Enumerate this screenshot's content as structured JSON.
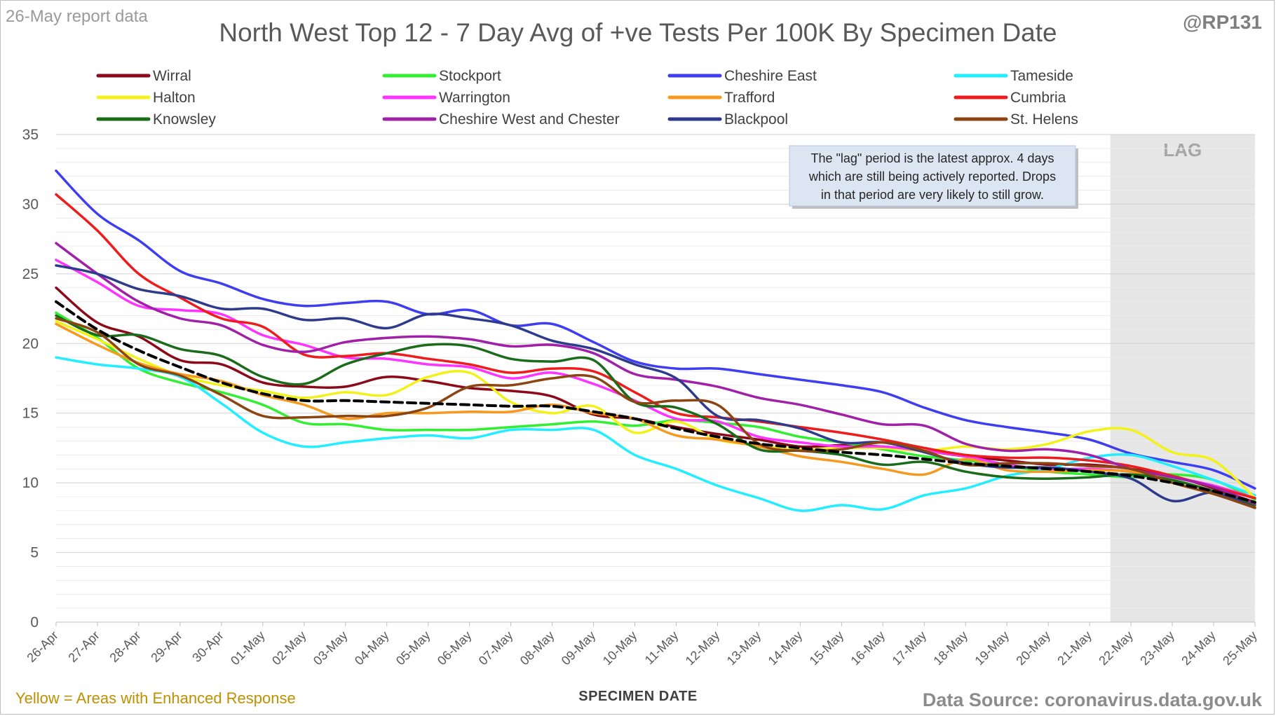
{
  "header": {
    "report_label": "26-May report data",
    "handle": "@RP131"
  },
  "footer": {
    "enhanced_note": "Yellow = Areas with Enhanced Response",
    "source": "Data Source: coronavirus.data.gov.uk"
  },
  "chart_data": {
    "type": "line",
    "title": "North West Top 12 - 7 Day Avg of +ve Tests Per 100K By Specimen Date",
    "xlabel": "SPECIMEN DATE",
    "ylabel": "",
    "ylim": [
      0,
      35
    ],
    "yticks": [
      0,
      5,
      10,
      15,
      20,
      25,
      30,
      35
    ],
    "grid": true,
    "legend_position": "top",
    "categories": [
      "26-Apr",
      "27-Apr",
      "28-Apr",
      "29-Apr",
      "30-Apr",
      "01-May",
      "02-May",
      "03-May",
      "04-May",
      "05-May",
      "06-May",
      "07-May",
      "08-May",
      "09-May",
      "10-May",
      "11-May",
      "12-May",
      "13-May",
      "14-May",
      "15-May",
      "16-May",
      "17-May",
      "18-May",
      "19-May",
      "20-May",
      "21-May",
      "22-May",
      "23-May",
      "24-May",
      "25-May"
    ],
    "lag": {
      "label": "LAG",
      "start_category": "22-May",
      "end_category": "25-May",
      "note": "The \"lag\" period is the latest approx. 4 days which are still being actively reported. Drops in that period are very likely to still grow."
    },
    "series": [
      {
        "name": "Wirral",
        "color": "#8b0a1a",
        "values": [
          24.0,
          21.5,
          20.5,
          18.8,
          18.5,
          17.2,
          16.9,
          16.9,
          17.6,
          17.3,
          16.8,
          16.6,
          16.2,
          14.9,
          14.6,
          14.0,
          13.5,
          13.1,
          12.6,
          12.7,
          12.6,
          12.3,
          11.9,
          11.6,
          11.3,
          11.3,
          11.0,
          10.5,
          9.6,
          8.6
        ]
      },
      {
        "name": "Stockport",
        "color": "#33ee33",
        "values": [
          22.2,
          20.4,
          18.2,
          17.2,
          16.5,
          15.6,
          14.3,
          14.2,
          13.8,
          13.8,
          13.8,
          14.0,
          14.2,
          14.4,
          14.1,
          14.5,
          14.3,
          14.0,
          13.3,
          12.9,
          12.4,
          11.9,
          11.6,
          11.2,
          10.8,
          10.6,
          10.4,
          10.6,
          10.2,
          8.8
        ]
      },
      {
        "name": "Cheshire East",
        "color": "#3e3ef0",
        "values": [
          32.4,
          29.3,
          27.4,
          25.2,
          24.3,
          23.2,
          22.7,
          22.9,
          23.0,
          22.1,
          22.4,
          21.3,
          21.4,
          20.1,
          18.7,
          18.2,
          18.2,
          17.8,
          17.4,
          17.0,
          16.5,
          15.4,
          14.5,
          14.0,
          13.6,
          13.1,
          12.1,
          11.5,
          10.9,
          9.6
        ]
      },
      {
        "name": "Tameside",
        "color": "#22eeff",
        "values": [
          19.0,
          18.5,
          18.2,
          17.6,
          15.7,
          13.6,
          12.6,
          12.9,
          13.2,
          13.4,
          13.2,
          13.8,
          13.8,
          13.8,
          12.0,
          11.0,
          9.8,
          8.9,
          8.0,
          8.4,
          8.1,
          9.1,
          9.6,
          10.5,
          11.0,
          11.8,
          12.0,
          11.2,
          10.2,
          9.1
        ]
      },
      {
        "name": "Halton",
        "color": "#f2f21a",
        "values": [
          21.6,
          20.3,
          18.9,
          17.7,
          17.0,
          16.6,
          16.1,
          16.5,
          16.3,
          17.6,
          17.9,
          15.8,
          15.0,
          15.5,
          13.6,
          14.4,
          13.1,
          12.7,
          12.4,
          12.5,
          12.5,
          12.3,
          12.6,
          12.4,
          12.8,
          13.7,
          13.8,
          12.2,
          11.6,
          8.9
        ]
      },
      {
        "name": "Warrington",
        "color": "#ff33ff",
        "values": [
          26.0,
          24.4,
          22.7,
          22.4,
          22.1,
          20.6,
          19.9,
          19.0,
          18.9,
          18.5,
          18.3,
          17.5,
          17.9,
          17.1,
          15.9,
          14.6,
          14.4,
          13.3,
          12.9,
          12.6,
          12.6,
          12.3,
          11.9,
          11.3,
          11.0,
          11.0,
          10.8,
          10.4,
          9.8,
          8.9
        ]
      },
      {
        "name": "Trafford",
        "color": "#f59a1e",
        "values": [
          21.4,
          19.9,
          18.6,
          17.8,
          17.3,
          16.3,
          15.6,
          14.6,
          15.0,
          15.0,
          15.1,
          15.1,
          15.6,
          15.0,
          14.6,
          13.4,
          13.1,
          12.6,
          11.9,
          11.5,
          11.0,
          10.6,
          11.7,
          10.9,
          10.8,
          10.9,
          10.8,
          10.2,
          9.4,
          8.3
        ]
      },
      {
        "name": "Cumbria",
        "color": "#ee1c1c",
        "values": [
          30.7,
          28.1,
          25.0,
          23.3,
          21.8,
          21.2,
          19.2,
          19.1,
          19.3,
          18.9,
          18.5,
          17.9,
          18.2,
          18.0,
          16.5,
          15.0,
          14.7,
          14.4,
          14.0,
          13.6,
          13.1,
          12.5,
          12.0,
          11.8,
          11.8,
          11.6,
          11.2,
          10.5,
          9.7,
          8.9
        ]
      },
      {
        "name": "Knowsley",
        "color": "#1a6b1a",
        "values": [
          22.0,
          20.6,
          20.6,
          19.6,
          19.1,
          17.6,
          17.1,
          18.5,
          19.3,
          19.9,
          19.8,
          18.9,
          18.7,
          18.8,
          15.8,
          15.4,
          14.2,
          12.4,
          12.3,
          12.0,
          11.3,
          11.5,
          10.8,
          10.4,
          10.3,
          10.4,
          10.6,
          10.2,
          9.4,
          8.4
        ]
      },
      {
        "name": "Cheshire West and Chester",
        "color": "#a020a8",
        "values": [
          27.2,
          25.0,
          23.0,
          21.8,
          21.3,
          19.9,
          19.4,
          20.1,
          20.4,
          20.5,
          20.3,
          19.8,
          19.9,
          19.3,
          17.8,
          17.4,
          16.9,
          16.1,
          15.6,
          14.9,
          14.2,
          14.1,
          12.8,
          12.3,
          12.4,
          12.0,
          11.0,
          10.4,
          9.7,
          8.5
        ]
      },
      {
        "name": "Blackpool",
        "color": "#2e3a8c",
        "values": [
          25.6,
          25.0,
          23.9,
          23.4,
          22.5,
          22.5,
          21.7,
          21.8,
          21.1,
          22.1,
          21.8,
          21.3,
          20.2,
          19.6,
          18.5,
          17.5,
          14.8,
          14.5,
          13.9,
          12.9,
          12.9,
          12.2,
          11.4,
          11.1,
          11.1,
          10.8,
          10.3,
          8.7,
          9.3,
          8.2
        ]
      },
      {
        "name": "St. Helens",
        "color": "#8b4513",
        "values": [
          21.8,
          20.8,
          18.5,
          17.7,
          16.3,
          14.8,
          14.7,
          14.8,
          14.8,
          15.4,
          16.9,
          17.0,
          17.5,
          17.6,
          15.8,
          15.9,
          15.6,
          12.8,
          12.3,
          12.4,
          12.9,
          12.3,
          11.3,
          11.4,
          11.4,
          11.2,
          11.0,
          10.0,
          9.2,
          8.2
        ]
      },
      {
        "name": "",
        "color": "#000000",
        "dashed": true,
        "values": [
          23.0,
          21.0,
          19.5,
          18.3,
          17.2,
          16.4,
          15.9,
          15.9,
          15.8,
          15.7,
          15.6,
          15.5,
          15.5,
          15.1,
          14.6,
          13.9,
          13.3,
          12.8,
          12.5,
          12.2,
          12.0,
          11.7,
          11.4,
          11.2,
          11.0,
          10.8,
          10.5,
          10.0,
          9.4,
          8.6
        ]
      }
    ]
  }
}
